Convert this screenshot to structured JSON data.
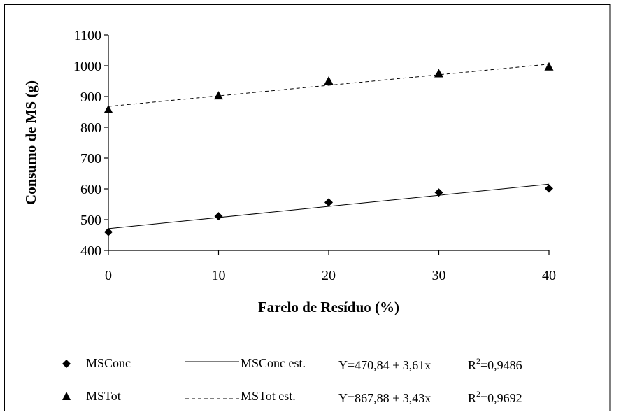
{
  "chart_data": {
    "type": "scatter",
    "title": "",
    "xlabel": "Farelo de Resíduo (%)",
    "ylabel": "Consumo de MS (g)",
    "x": [
      0,
      10,
      20,
      30,
      40
    ],
    "xlim": [
      0,
      40
    ],
    "ylim": [
      400,
      1100
    ],
    "x_ticks": [
      "0",
      "10",
      "20",
      "30",
      "40"
    ],
    "y_ticks": [
      "400",
      "500",
      "600",
      "700",
      "800",
      "900",
      "1000",
      "1100"
    ],
    "grid": false,
    "legend_position": "bottom",
    "series": [
      {
        "name": "MSConc",
        "marker": "diamond",
        "values": [
          460,
          511,
          556,
          588,
          601
        ]
      },
      {
        "name": "MSTot",
        "marker": "triangle",
        "values": [
          857,
          902,
          950,
          974,
          996
        ]
      }
    ],
    "fits": [
      {
        "name": "MSConc est.",
        "line_style": "solid",
        "intercept": 470.84,
        "slope": 3.61,
        "equation": "Y=470,84 + 3,61x",
        "r2_prefix": "R",
        "r2_sup": "2",
        "r2_value": "=0,9486"
      },
      {
        "name": "MSTot est.",
        "line_style": "dashed",
        "intercept": 867.88,
        "slope": 3.43,
        "equation": "Y=867,88 + 3,43x",
        "r2_prefix": "R",
        "r2_sup": "2",
        "r2_value": "=0,9692"
      }
    ]
  }
}
